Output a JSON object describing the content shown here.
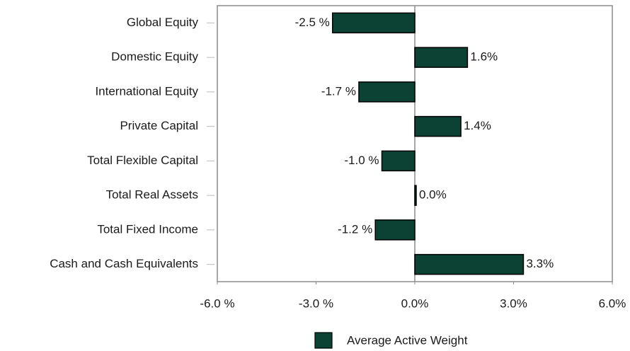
{
  "chart_data": {
    "type": "bar",
    "orientation": "horizontal",
    "categories": [
      "Global Equity",
      "Domestic Equity",
      "International Equity",
      "Private Capital",
      "Total Flexible Capital",
      "Total Real Assets",
      "Total Fixed Income",
      "Cash and Cash Equivalents"
    ],
    "series": [
      {
        "name": "Average Active Weight",
        "color": "#0b4234",
        "values": [
          -2.5,
          1.6,
          -1.7,
          1.4,
          -1.0,
          0.0,
          -1.2,
          3.3
        ],
        "value_labels": [
          "-2.5 %",
          "1.6%",
          "-1.7 %",
          "1.4%",
          "-1.0 %",
          "0.0%",
          "-1.2 %",
          "3.3%"
        ]
      }
    ],
    "xlim": [
      -6,
      6
    ],
    "xticks": [
      {
        "value": -6,
        "label": "-6.0 %"
      },
      {
        "value": -3,
        "label": "-3.0 %"
      },
      {
        "value": 0,
        "label": "0.0%"
      },
      {
        "value": 3,
        "label": "3.0%"
      },
      {
        "value": 6,
        "label": "6.0%"
      }
    ],
    "grid": false,
    "legend": "bottom"
  }
}
